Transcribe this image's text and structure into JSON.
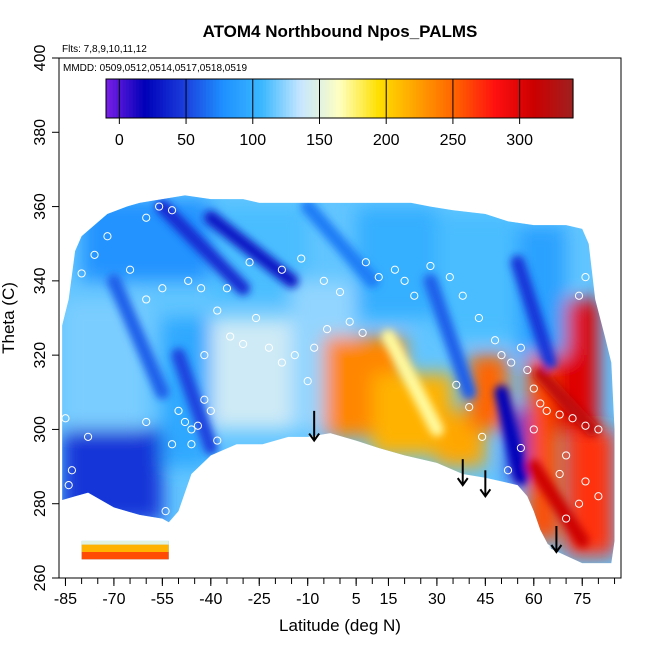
{
  "chart_data": {
    "type": "heatmap",
    "title": "ATOM4 Northbound Npos_PALMS",
    "subtitle_flights": "Flts: 7,8,9,10,11,12",
    "subtitle_dates": "MMDD: 0509,0512,0514,0517,0518,0519",
    "xlabel": "Latitude (deg N)",
    "ylabel": "Theta (C)",
    "xlim": [
      -87,
      87
    ],
    "ylim": [
      260,
      400
    ],
    "x_ticks": [
      -85,
      -70,
      -55,
      -40,
      -25,
      -10,
      5,
      15,
      30,
      45,
      60,
      75
    ],
    "y_ticks": [
      260,
      280,
      300,
      320,
      340,
      360,
      380,
      400
    ],
    "colorbar": {
      "ticks": [
        0,
        50,
        100,
        150,
        200,
        250,
        300
      ],
      "range": [
        -10,
        340
      ],
      "colors": [
        "#7a1fe8",
        "#0000b8",
        "#1a3ddc",
        "#1e90ff",
        "#3ab8ff",
        "#c6e6ff",
        "#ffffc0",
        "#ffe000",
        "#ffa000",
        "#ff6000",
        "#ff1010",
        "#cc0000",
        "#9e2020"
      ]
    },
    "data_boundary": {
      "upper": [
        [
          -86,
          328
        ],
        [
          -84,
          335
        ],
        [
          -82,
          348
        ],
        [
          -80,
          352
        ],
        [
          -76,
          355
        ],
        [
          -72,
          358
        ],
        [
          -66,
          360
        ],
        [
          -62,
          361
        ],
        [
          -55,
          362
        ],
        [
          -48,
          363
        ],
        [
          -40,
          362
        ],
        [
          -30,
          362
        ],
        [
          -25,
          361
        ],
        [
          -15,
          361
        ],
        [
          -5,
          361
        ],
        [
          5,
          361
        ],
        [
          15,
          361
        ],
        [
          22,
          361
        ],
        [
          28,
          360
        ],
        [
          35,
          359
        ],
        [
          45,
          358
        ],
        [
          52,
          356
        ],
        [
          60,
          355
        ],
        [
          70,
          355
        ],
        [
          75,
          354
        ],
        [
          77,
          350
        ],
        [
          79,
          335
        ],
        [
          82,
          325
        ],
        [
          84,
          318
        ],
        [
          85,
          300
        ],
        [
          85,
          270
        ],
        [
          84,
          264
        ]
      ],
      "lower": [
        [
          -86,
          281
        ],
        [
          -82,
          282
        ],
        [
          -78,
          283
        ],
        [
          -70,
          279
        ],
        [
          -62,
          277
        ],
        [
          -55,
          276
        ],
        [
          -53,
          275
        ],
        [
          -52,
          276
        ],
        [
          -50,
          278
        ],
        [
          -46,
          288
        ],
        [
          -40,
          293
        ],
        [
          -32,
          296
        ],
        [
          -24,
          296
        ],
        [
          -16,
          298
        ],
        [
          -10,
          298
        ],
        [
          -3,
          299
        ],
        [
          5,
          297
        ],
        [
          12,
          295
        ],
        [
          20,
          293
        ],
        [
          30,
          291
        ],
        [
          38,
          288
        ],
        [
          45,
          287
        ],
        [
          50,
          286
        ],
        [
          55,
          285
        ],
        [
          58,
          282
        ],
        [
          60,
          278
        ],
        [
          62,
          273
        ],
        [
          65,
          268
        ],
        [
          70,
          266
        ],
        [
          75,
          264
        ],
        [
          84,
          264
        ]
      ],
      "low_strip": {
        "lat": [
          -80,
          -53
        ],
        "theta": [
          265,
          270
        ]
      }
    },
    "field_blocks": [
      {
        "lat": [
          -86,
          -55
        ],
        "theta": [
          275,
          300
        ],
        "value": 45
      },
      {
        "lat": [
          -86,
          -60
        ],
        "theta": [
          300,
          335
        ],
        "value": 120
      },
      {
        "lat": [
          -80,
          -40
        ],
        "theta": [
          340,
          362
        ],
        "value": 80
      },
      {
        "lat": [
          -55,
          -40
        ],
        "theta": [
          290,
          330
        ],
        "value": 95
      },
      {
        "lat": [
          -40,
          -15
        ],
        "theta": [
          300,
          330
        ],
        "value": 140
      },
      {
        "lat": [
          -40,
          -10
        ],
        "theta": [
          335,
          360
        ],
        "value": 110
      },
      {
        "lat": [
          -15,
          5
        ],
        "theta": [
          300,
          340
        ],
        "value": 125
      },
      {
        "lat": [
          5,
          30
        ],
        "theta": [
          330,
          360
        ],
        "value": 100
      },
      {
        "lat": [
          30,
          55
        ],
        "theta": [
          325,
          358
        ],
        "value": 110
      },
      {
        "lat": [
          -5,
          20
        ],
        "theta": [
          298,
          325
        ],
        "value": 235
      },
      {
        "lat": [
          10,
          35
        ],
        "theta": [
          293,
          315
        ],
        "value": 215
      },
      {
        "lat": [
          30,
          45
        ],
        "theta": [
          290,
          305
        ],
        "value": 220
      },
      {
        "lat": [
          40,
          52
        ],
        "theta": [
          300,
          320
        ],
        "value": 250
      },
      {
        "lat": [
          52,
          58
        ],
        "theta": [
          286,
          305
        ],
        "value": 40
      },
      {
        "lat": [
          58,
          68
        ],
        "theta": [
          270,
          320
        ],
        "value": 260
      },
      {
        "lat": [
          66,
          80
        ],
        "theta": [
          300,
          335
        ],
        "value": 300
      },
      {
        "lat": [
          70,
          85
        ],
        "theta": [
          266,
          300
        ],
        "value": 270
      },
      {
        "lat": [
          55,
          70
        ],
        "theta": [
          320,
          355
        ],
        "value": 90
      }
    ],
    "diagonal_bands": [
      {
        "from": [
          -55,
          360
        ],
        "to": [
          -30,
          338
        ],
        "value": 40
      },
      {
        "from": [
          -40,
          357
        ],
        "to": [
          -15,
          340
        ],
        "value": 30
      },
      {
        "from": [
          -70,
          340
        ],
        "to": [
          -55,
          310
        ],
        "value": 60
      },
      {
        "from": [
          -50,
          320
        ],
        "to": [
          -40,
          295
        ],
        "value": 50
      },
      {
        "from": [
          -10,
          360
        ],
        "to": [
          10,
          340
        ],
        "value": 70
      },
      {
        "from": [
          55,
          345
        ],
        "to": [
          65,
          318
        ],
        "value": 45
      },
      {
        "from": [
          28,
          340
        ],
        "to": [
          40,
          310
        ],
        "value": 60
      },
      {
        "from": [
          15,
          325
        ],
        "to": [
          30,
          300
        ],
        "value": 170
      },
      {
        "from": [
          50,
          310
        ],
        "to": [
          56,
          287
        ],
        "value": 20
      },
      {
        "from": [
          62,
          315
        ],
        "to": [
          78,
          300
        ],
        "value": 320
      },
      {
        "from": [
          60,
          290
        ],
        "to": [
          75,
          270
        ],
        "value": 310
      }
    ],
    "low_strip_colors": [
      {
        "theta": [
          265,
          267
        ],
        "value": 260
      },
      {
        "theta": [
          267,
          269
        ],
        "value": 215
      },
      {
        "theta": [
          269,
          270.5
        ],
        "value": 150
      }
    ],
    "observations": [
      [
        -83,
        289
      ],
      [
        -78,
        298
      ],
      [
        -80,
        342
      ],
      [
        -76,
        347
      ],
      [
        -72,
        352
      ],
      [
        -60,
        357
      ],
      [
        -56,
        360
      ],
      [
        -52,
        359
      ],
      [
        -50,
        305
      ],
      [
        -48,
        302
      ],
      [
        -46,
        300
      ],
      [
        -44,
        301
      ],
      [
        -42,
        308
      ],
      [
        -40,
        305
      ],
      [
        -38,
        297
      ],
      [
        -46,
        296
      ],
      [
        -52,
        296
      ],
      [
        -60,
        302
      ],
      [
        -54,
        278
      ],
      [
        -65,
        343
      ],
      [
        -60,
        335
      ],
      [
        -55,
        338
      ],
      [
        -47,
        340
      ],
      [
        -43,
        338
      ],
      [
        -38,
        332
      ],
      [
        -34,
        325
      ],
      [
        -30,
        323
      ],
      [
        -26,
        330
      ],
      [
        -22,
        322
      ],
      [
        -18,
        318
      ],
      [
        -14,
        320
      ],
      [
        -10,
        313
      ],
      [
        -8,
        322
      ],
      [
        -4,
        327
      ],
      [
        0,
        337
      ],
      [
        3,
        329
      ],
      [
        7,
        326
      ],
      [
        12,
        341
      ],
      [
        17,
        343
      ],
      [
        23,
        336
      ],
      [
        28,
        344
      ],
      [
        34,
        341
      ],
      [
        38,
        336
      ],
      [
        43,
        330
      ],
      [
        48,
        324
      ],
      [
        50,
        320
      ],
      [
        53,
        318
      ],
      [
        56,
        322
      ],
      [
        58,
        316
      ],
      [
        60,
        311
      ],
      [
        62,
        307
      ],
      [
        64,
        305
      ],
      [
        68,
        304
      ],
      [
        72,
        303
      ],
      [
        76,
        301
      ],
      [
        80,
        300
      ],
      [
        74,
        336
      ],
      [
        76,
        341
      ],
      [
        80,
        346
      ],
      [
        82,
        350
      ],
      [
        83,
        354
      ],
      [
        36,
        312
      ],
      [
        40,
        306
      ],
      [
        44,
        298
      ],
      [
        46,
        285
      ],
      [
        52,
        289
      ],
      [
        56,
        295
      ],
      [
        60,
        300
      ],
      [
        -28,
        345
      ],
      [
        -18,
        343
      ],
      [
        -12,
        346
      ],
      [
        -5,
        340
      ],
      [
        8,
        345
      ],
      [
        20,
        340
      ],
      [
        -35,
        338
      ],
      [
        -42,
        320
      ],
      [
        -85,
        303
      ],
      [
        -84,
        285
      ],
      [
        68,
        288
      ],
      [
        70,
        293
      ],
      [
        76,
        286
      ],
      [
        80,
        282
      ],
      [
        64,
        268
      ],
      [
        70,
        276
      ],
      [
        74,
        280
      ]
    ],
    "arrows": [
      {
        "lat": -8,
        "theta_from": 305,
        "theta_to": 297
      },
      {
        "lat": 38,
        "theta_from": 292,
        "theta_to": 285
      },
      {
        "lat": 45,
        "theta_from": 289,
        "theta_to": 282
      },
      {
        "lat": 67,
        "theta_from": 274,
        "theta_to": 267
      }
    ]
  }
}
